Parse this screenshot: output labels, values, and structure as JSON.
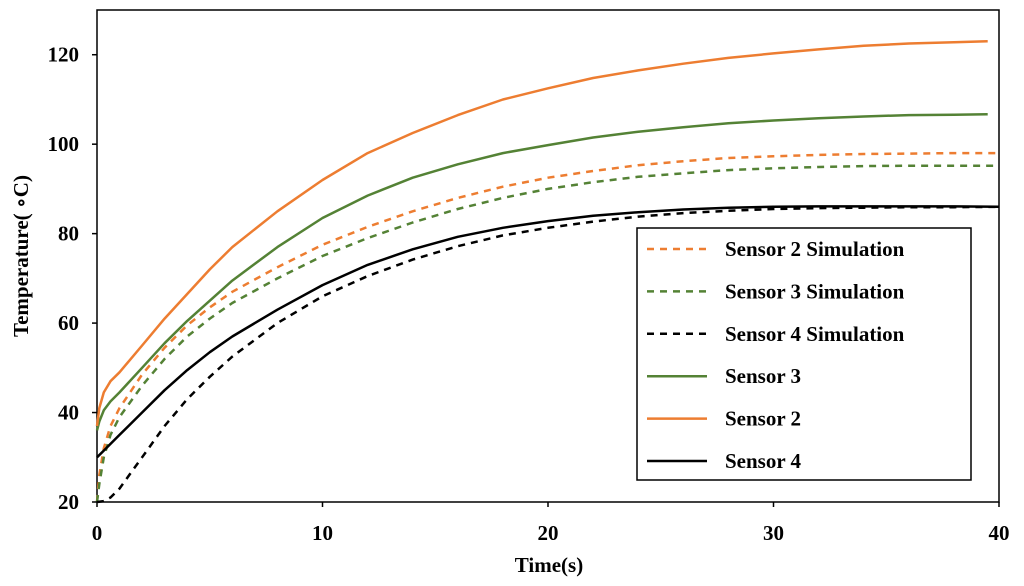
{
  "chart_data": {
    "type": "line",
    "title": "",
    "xlabel": "Time(s)",
    "ylabel": "Temperature( ∘C)",
    "xlim": [
      0,
      40
    ],
    "ylim": [
      20,
      130
    ],
    "x_ticks": [
      0,
      10,
      20,
      30,
      40
    ],
    "y_ticks": [
      20,
      40,
      60,
      80,
      100,
      120
    ],
    "grid": false,
    "legend_position": "bottom-right",
    "series": [
      {
        "name": "Sensor 2 Simulation",
        "color": "#ED7D31",
        "style": "dashed",
        "x": [
          0,
          0.1,
          0.3,
          0.6,
          1,
          2,
          3,
          4,
          5,
          6,
          8,
          10,
          12,
          14,
          16,
          18,
          20,
          22,
          24,
          26,
          28,
          30,
          32,
          34,
          36,
          38,
          40
        ],
        "y": [
          20,
          26,
          32,
          37,
          41,
          48.5,
          54.5,
          59.5,
          63.5,
          67,
          72.5,
          77.5,
          81.5,
          85,
          88,
          90.5,
          92.5,
          94,
          95.3,
          96.2,
          96.9,
          97.3,
          97.6,
          97.8,
          97.9,
          98,
          98
        ]
      },
      {
        "name": "Sensor 3 Simulation",
        "color": "#548235",
        "style": "dashed",
        "x": [
          0,
          0.1,
          0.3,
          0.6,
          1,
          2,
          3,
          4,
          5,
          6,
          8,
          10,
          12,
          14,
          16,
          18,
          20,
          22,
          24,
          26,
          28,
          30,
          32,
          34,
          36,
          38,
          40
        ],
        "y": [
          20,
          24,
          30,
          35,
          39,
          46,
          52,
          57,
          61,
          64.5,
          70,
          75,
          79,
          82.5,
          85.5,
          88,
          90,
          91.5,
          92.7,
          93.5,
          94.2,
          94.6,
          94.9,
          95.1,
          95.2,
          95.2,
          95.2
        ]
      },
      {
        "name": "Sensor 4 Simulation",
        "color": "#000000",
        "style": "dashed",
        "x": [
          0,
          0.3,
          0.6,
          1,
          1.5,
          2,
          3,
          4,
          5,
          6,
          8,
          10,
          12,
          14,
          16,
          18,
          20,
          22,
          24,
          26,
          28,
          30,
          32,
          34,
          36,
          38,
          40
        ],
        "y": [
          20,
          20.2,
          21,
          23,
          26.5,
          30,
          37,
          43,
          48,
          52.5,
          60,
          66,
          70.5,
          74.2,
          77.2,
          79.6,
          81.3,
          82.7,
          83.8,
          84.6,
          85.1,
          85.5,
          85.7,
          85.8,
          85.9,
          85.9,
          86
        ]
      },
      {
        "name": "Sensor 3",
        "color": "#548235",
        "style": "solid",
        "x": [
          0,
          0.1,
          0.3,
          0.6,
          1,
          2,
          3,
          4,
          5,
          6,
          8,
          10,
          12,
          14,
          16,
          18,
          20,
          22,
          24,
          26,
          28,
          30,
          32,
          34,
          36,
          38,
          39.5
        ],
        "y": [
          36,
          38,
          40.5,
          42.5,
          44.5,
          50,
          55.5,
          60.5,
          65,
          69.5,
          77,
          83.5,
          88.5,
          92.5,
          95.5,
          98,
          99.8,
          101.5,
          102.8,
          103.8,
          104.7,
          105.3,
          105.8,
          106.2,
          106.5,
          106.6,
          106.7
        ]
      },
      {
        "name": "Sensor 2",
        "color": "#ED7D31",
        "style": "solid",
        "x": [
          0,
          0.1,
          0.3,
          0.6,
          1,
          2,
          3,
          4,
          5,
          6,
          8,
          10,
          12,
          14,
          16,
          18,
          20,
          22,
          24,
          26,
          28,
          30,
          32,
          34,
          36,
          38,
          39.5
        ],
        "y": [
          37,
          41,
          44.5,
          47,
          49,
          55,
          61,
          66.5,
          72,
          77,
          85,
          92,
          98,
          102.5,
          106.5,
          110,
          112.5,
          114.8,
          116.5,
          118,
          119.3,
          120.3,
          121.2,
          122,
          122.5,
          122.8,
          123
        ]
      },
      {
        "name": "Sensor 4",
        "color": "#000000",
        "style": "solid",
        "x": [
          0,
          0.3,
          0.6,
          1,
          2,
          3,
          4,
          5,
          6,
          8,
          10,
          12,
          14,
          16,
          18,
          20,
          22,
          24,
          26,
          28,
          30,
          32,
          34,
          36,
          38,
          40
        ],
        "y": [
          30,
          31.5,
          33,
          35,
          40,
          45,
          49.5,
          53.5,
          57,
          63,
          68.5,
          73,
          76.5,
          79.3,
          81.3,
          82.8,
          84,
          84.8,
          85.4,
          85.8,
          86,
          86.1,
          86.1,
          86.1,
          86.1,
          86
        ]
      }
    ],
    "legend_order": [
      "Sensor 2 Simulation",
      "Sensor 3 Simulation",
      "Sensor 4 Simulation",
      "Sensor 3",
      "Sensor 2",
      "Sensor 4"
    ]
  }
}
